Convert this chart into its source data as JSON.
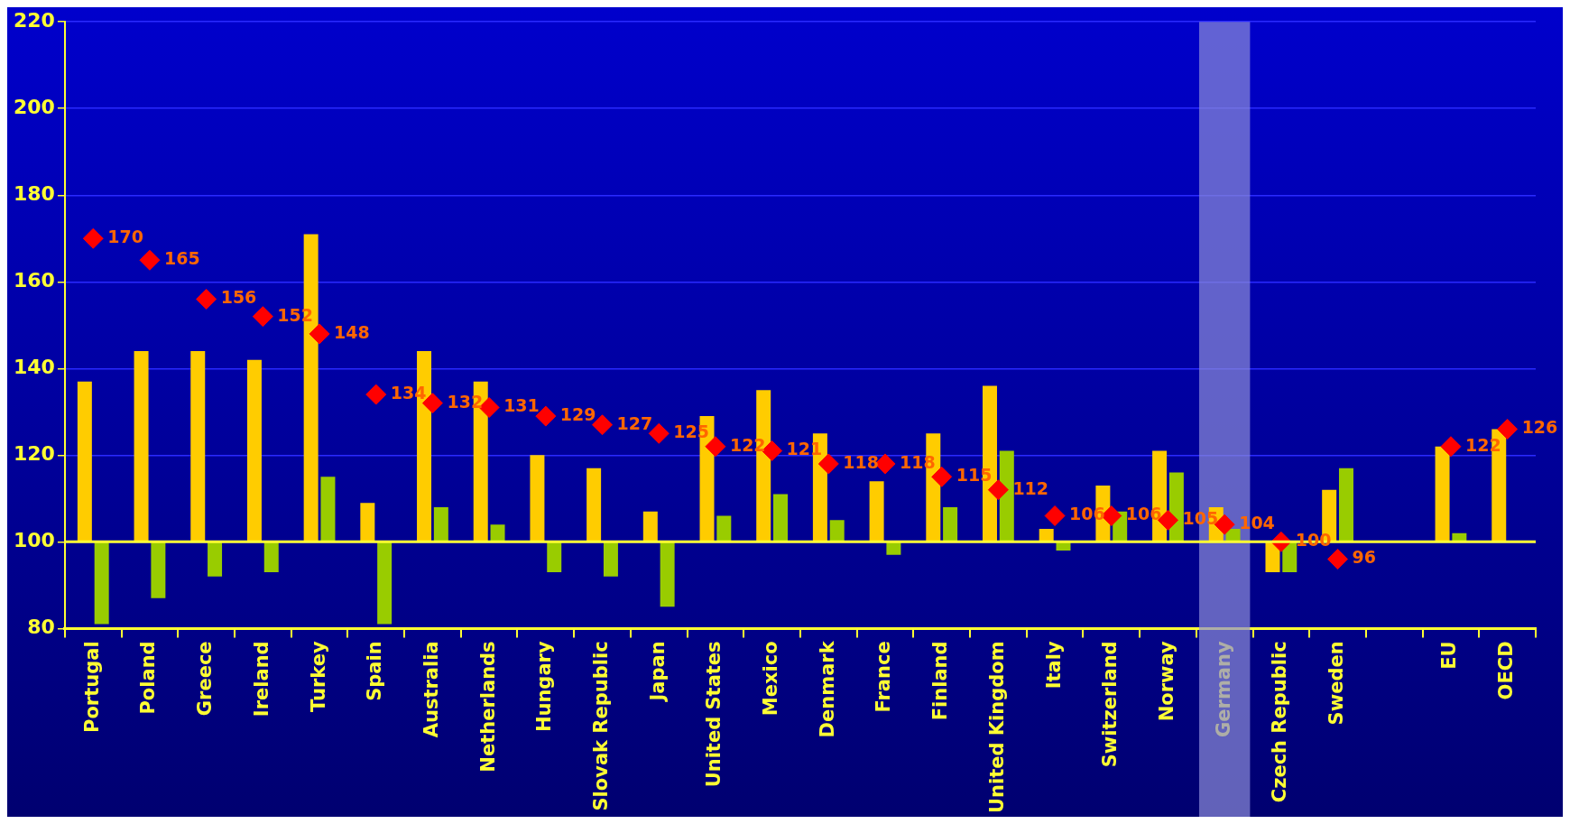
{
  "chart_data": {
    "type": "bar",
    "categories": [
      "Portugal",
      "Poland",
      "Greece",
      "Ireland",
      "Turkey",
      "Spain",
      "Australia",
      "Netherlands",
      "Hungary",
      "Slovak Republic",
      "Japan",
      "United States",
      "Mexico",
      "Denmark",
      "France",
      "Finland",
      "United Kingdom",
      "Italy",
      "Switzerland",
      "Norway",
      "Germany",
      "Czech Republic",
      "Sweden",
      null,
      "EU",
      "OECD"
    ],
    "series": [
      {
        "color": "#ffcc00",
        "base": [
          100,
          100,
          100,
          100,
          100,
          100,
          100,
          100,
          100,
          100,
          100,
          100,
          100,
          100,
          100,
          100,
          100,
          100,
          100,
          100,
          100,
          100,
          100,
          null,
          100,
          100
        ],
        "values": [
          37,
          44,
          44,
          42,
          71,
          9,
          44,
          37,
          20,
          17,
          7,
          29,
          35,
          25,
          14,
          25,
          36,
          3,
          13,
          21,
          8,
          -7,
          12,
          null,
          22,
          26
        ]
      },
      {
        "color": "#99cc00",
        "base": [
          100,
          100,
          100,
          100,
          100,
          100,
          100,
          100,
          100,
          100,
          100,
          100,
          100,
          100,
          100,
          100,
          100,
          100,
          100,
          100,
          100,
          100,
          100,
          null,
          100,
          null
        ],
        "values": [
          -19,
          -13,
          -8,
          -7,
          15,
          -19,
          8,
          4,
          -7,
          -8,
          -15,
          6,
          11,
          5,
          -3,
          8,
          21,
          -2,
          7,
          16,
          3,
          -7,
          17,
          null,
          2,
          null
        ]
      },
      {
        "type": "scatter",
        "color": "#ff0000",
        "marker": "diamond",
        "values": [
          170,
          165,
          156,
          152,
          148,
          134,
          132,
          131,
          129,
          127,
          125,
          122,
          121,
          118,
          118,
          115,
          112,
          106,
          106,
          105,
          104,
          100,
          96,
          null,
          122,
          126
        ],
        "value_labels": [
          "170",
          "165",
          "156",
          "152",
          "148",
          "134",
          "132",
          "131",
          "129",
          "127",
          "125",
          "122",
          "121",
          "118",
          "118",
          "115",
          "112",
          "106",
          "106",
          "105",
          "104",
          "100",
          "96",
          null,
          "122",
          "126"
        ]
      }
    ],
    "ylim": [
      80,
      220
    ],
    "yticks": [
      80,
      100,
      120,
      140,
      160,
      180,
      200,
      220
    ],
    "grid": "y",
    "legend": false,
    "ref_lines": [
      {
        "axis": "y",
        "value": 100,
        "color": "#ffff33",
        "line_style": "solid"
      }
    ],
    "bands": [
      {
        "axis": "x",
        "from": "Germany",
        "to": "Germany",
        "color": "#8c8cd9"
      }
    ]
  }
}
